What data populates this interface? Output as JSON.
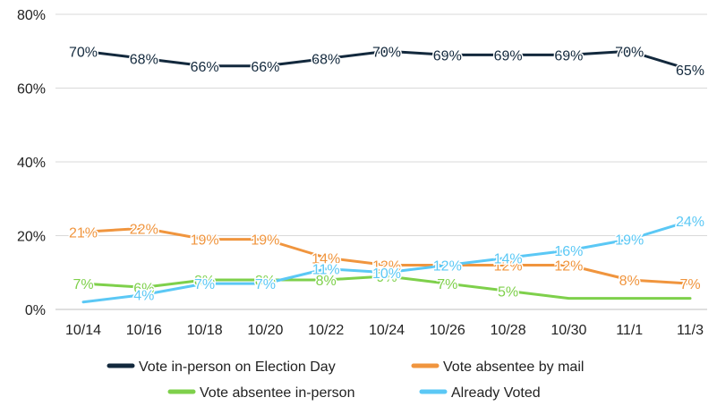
{
  "chart_data": {
    "type": "line",
    "title": "",
    "xlabel": "",
    "ylabel": "",
    "categories": [
      "10/14",
      "10/16",
      "10/18",
      "10/20",
      "10/22",
      "10/24",
      "10/26",
      "10/28",
      "10/30",
      "11/1",
      "11/3"
    ],
    "ylim": [
      0,
      80
    ],
    "yticks": [
      "0%",
      "20%",
      "40%",
      "60%",
      "80%"
    ],
    "grid": true,
    "legend_position": "bottom",
    "series": [
      {
        "name": "Vote in-person on Election Day",
        "color": "#13293d",
        "values": [
          70,
          68,
          66,
          66,
          68,
          70,
          69,
          69,
          69,
          70,
          65
        ],
        "labels": [
          "70%",
          "68%",
          "66%",
          "66%",
          "68%",
          "70%",
          "69%",
          "69%",
          "69%",
          "70%",
          "65%"
        ]
      },
      {
        "name": "Vote absentee by mail",
        "color": "#f0953e",
        "values": [
          21,
          22,
          19,
          19,
          14,
          12,
          12,
          12,
          12,
          8,
          7
        ],
        "labels": [
          "21%",
          "22%",
          "19%",
          "19%",
          "14%",
          "12%",
          "12%",
          "12%",
          "12%",
          "8%",
          "7%"
        ]
      },
      {
        "name": "Vote absentee in-person",
        "color": "#7ed04b",
        "values": [
          7,
          6,
          8,
          8,
          8,
          9,
          7,
          5,
          3,
          3,
          3
        ],
        "labels": [
          "7%",
          "6%",
          "8%",
          "8%",
          "8%",
          "9%",
          "7%",
          "5%",
          "",
          "",
          ""
        ]
      },
      {
        "name": "Already Voted",
        "color": "#5bc8f5",
        "values": [
          2,
          4,
          7,
          7,
          11,
          10,
          12,
          14,
          16,
          19,
          24
        ],
        "labels": [
          "",
          "4%",
          "7%",
          "7%",
          "11%",
          "10%",
          "12%",
          "14%",
          "16%",
          "19%",
          "24%"
        ]
      }
    ]
  }
}
